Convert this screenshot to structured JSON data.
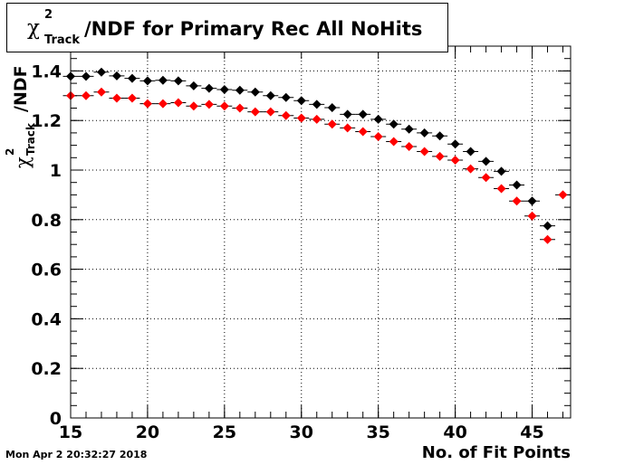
{
  "chart_data": {
    "type": "scatter",
    "title": "/NDF for Primary Rec All NoHits",
    "title_symbol": {
      "base": "χ",
      "sup": "2",
      "sub": "Track"
    },
    "xlabel": "No. of Fit Points",
    "ylabel": "/NDF",
    "xlim": [
      15,
      47.5
    ],
    "ylim": [
      0,
      1.5
    ],
    "xticks": [
      "15",
      "20",
      "25",
      "30",
      "35",
      "40",
      "45"
    ],
    "yticks": [
      "0",
      "0.2",
      "0.4",
      "0.6",
      "0.8",
      "1",
      "1.2",
      "1.4"
    ],
    "grid": true,
    "series": [
      {
        "color": "#000000",
        "x": [
          15,
          16,
          17,
          18,
          19,
          20,
          21,
          22,
          23,
          24,
          25,
          26,
          27,
          28,
          29,
          30,
          31,
          32,
          33,
          34,
          35,
          36,
          37,
          38,
          39,
          40,
          41,
          42,
          43,
          44,
          45,
          46
        ],
        "y": [
          1.378,
          1.378,
          1.395,
          1.38,
          1.37,
          1.36,
          1.362,
          1.36,
          1.34,
          1.33,
          1.325,
          1.322,
          1.315,
          1.3,
          1.293,
          1.28,
          1.265,
          1.252,
          1.225,
          1.225,
          1.205,
          1.185,
          1.165,
          1.15,
          1.138,
          1.105,
          1.075,
          1.035,
          0.995,
          0.94,
          0.875,
          0.775
        ]
      },
      {
        "color": "#ff0000",
        "x": [
          15,
          16,
          17,
          18,
          19,
          20,
          21,
          22,
          23,
          24,
          25,
          26,
          27,
          28,
          29,
          30,
          31,
          32,
          33,
          34,
          35,
          36,
          37,
          38,
          39,
          40,
          41,
          42,
          43,
          44,
          45,
          46,
          47
        ],
        "y": [
          1.3,
          1.3,
          1.315,
          1.29,
          1.29,
          1.268,
          1.268,
          1.272,
          1.258,
          1.265,
          1.258,
          1.25,
          1.235,
          1.235,
          1.22,
          1.21,
          1.205,
          1.185,
          1.17,
          1.155,
          1.135,
          1.115,
          1.095,
          1.075,
          1.055,
          1.04,
          1.005,
          0.97,
          0.925,
          0.875,
          0.815,
          0.72,
          0.9
        ]
      }
    ]
  },
  "footer": {
    "timestamp": "Mon Apr  2 20:32:27 2018"
  }
}
